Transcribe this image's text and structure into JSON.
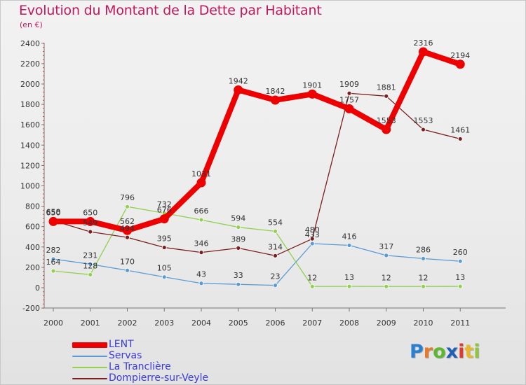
{
  "header": {
    "title": "Evolution du Montant de la Dette par Habitant",
    "unit": "(en €)"
  },
  "logo": {
    "text": "Proxiti",
    "letter_colors": [
      "#2a7fd1",
      "#e8782a",
      "#5cb82e",
      "#1f5fb8",
      "#e03a2e",
      "#e8b82a",
      "#8ec63f"
    ]
  },
  "chart_data": {
    "type": "line",
    "title": "Evolution du Montant de la Dette par Habitant",
    "subtitle": "(en €)",
    "x": [
      "2000",
      "2001",
      "2002",
      "2003",
      "2004",
      "2005",
      "2006",
      "2007",
      "2008",
      "2009",
      "2010",
      "2011"
    ],
    "ylim": [
      -200,
      2400
    ],
    "yticks": [
      -200,
      0,
      200,
      400,
      600,
      800,
      1000,
      1200,
      1400,
      1600,
      1800,
      2000,
      2200,
      2400
    ],
    "grid": false,
    "legend_position": "bottom-left",
    "series": [
      {
        "name": "LENT",
        "color": "#ee0000",
        "weight": "heavy",
        "values": [
          650,
          650,
          562,
          676,
          1031,
          1942,
          1842,
          1901,
          1757,
          1553,
          2316,
          2194
        ]
      },
      {
        "name": "Servas",
        "color": "#5b9bd5",
        "weight": "thin",
        "values": [
          282,
          231,
          170,
          105,
          43,
          33,
          23,
          433,
          416,
          317,
          286,
          260
        ]
      },
      {
        "name": "La Tranclière",
        "color": "#92d050",
        "weight": "thin",
        "values": [
          164,
          128,
          796,
          732,
          666,
          594,
          554,
          12,
          13,
          12,
          12,
          13
        ]
      },
      {
        "name": "Dompierre-sur-Veyle",
        "color": "#7a1f1f",
        "weight": "thin",
        "values": [
          658,
          549,
          494,
          395,
          346,
          389,
          314,
          480,
          1909,
          1881,
          1553,
          1461
        ]
      }
    ]
  }
}
